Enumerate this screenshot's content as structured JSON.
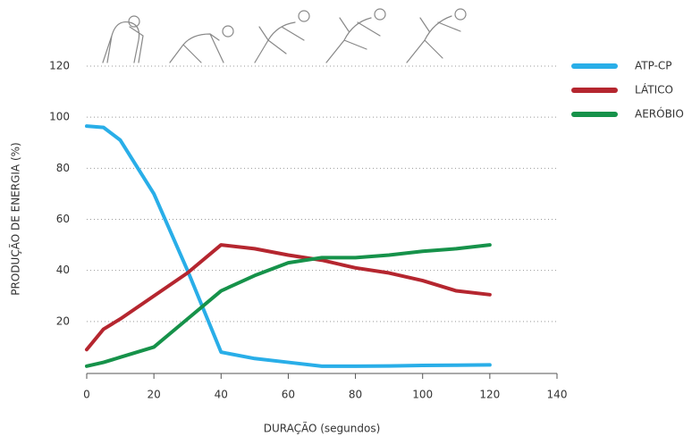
{
  "chart_data": {
    "type": "line",
    "x": [
      0,
      5,
      10,
      20,
      30,
      40,
      50,
      60,
      70,
      80,
      90,
      100,
      110,
      120
    ],
    "series": [
      {
        "name": "ATP-CP",
        "color": "#29aee8",
        "values": [
          96.5,
          96,
          91,
          70,
          40,
          8,
          5.5,
          4,
          2.5,
          2.5,
          2.6,
          2.8,
          2.9,
          3
        ]
      },
      {
        "name": "LÁTICO",
        "color": "#b5262f",
        "values": [
          9,
          17,
          21,
          30,
          39,
          50,
          48.5,
          46,
          44,
          41,
          39,
          36,
          32,
          30.5
        ]
      },
      {
        "name": "AERÓBIO",
        "color": "#16924a",
        "values": [
          2.5,
          4,
          6,
          10,
          21,
          32,
          38,
          43,
          45,
          45,
          46,
          47.5,
          48.5,
          50
        ]
      }
    ],
    "x_label": "DURAÇÃO (segundos)",
    "y_label": "PRODUÇÃO DE ENERGIA (%)",
    "xlim": [
      0,
      140
    ],
    "xticks": [
      0,
      20,
      40,
      60,
      80,
      100,
      120,
      140
    ],
    "ylim": [
      0,
      120
    ],
    "yticks": [
      20,
      40,
      60,
      80,
      100,
      120
    ],
    "grid": true,
    "legend": "top-right"
  }
}
